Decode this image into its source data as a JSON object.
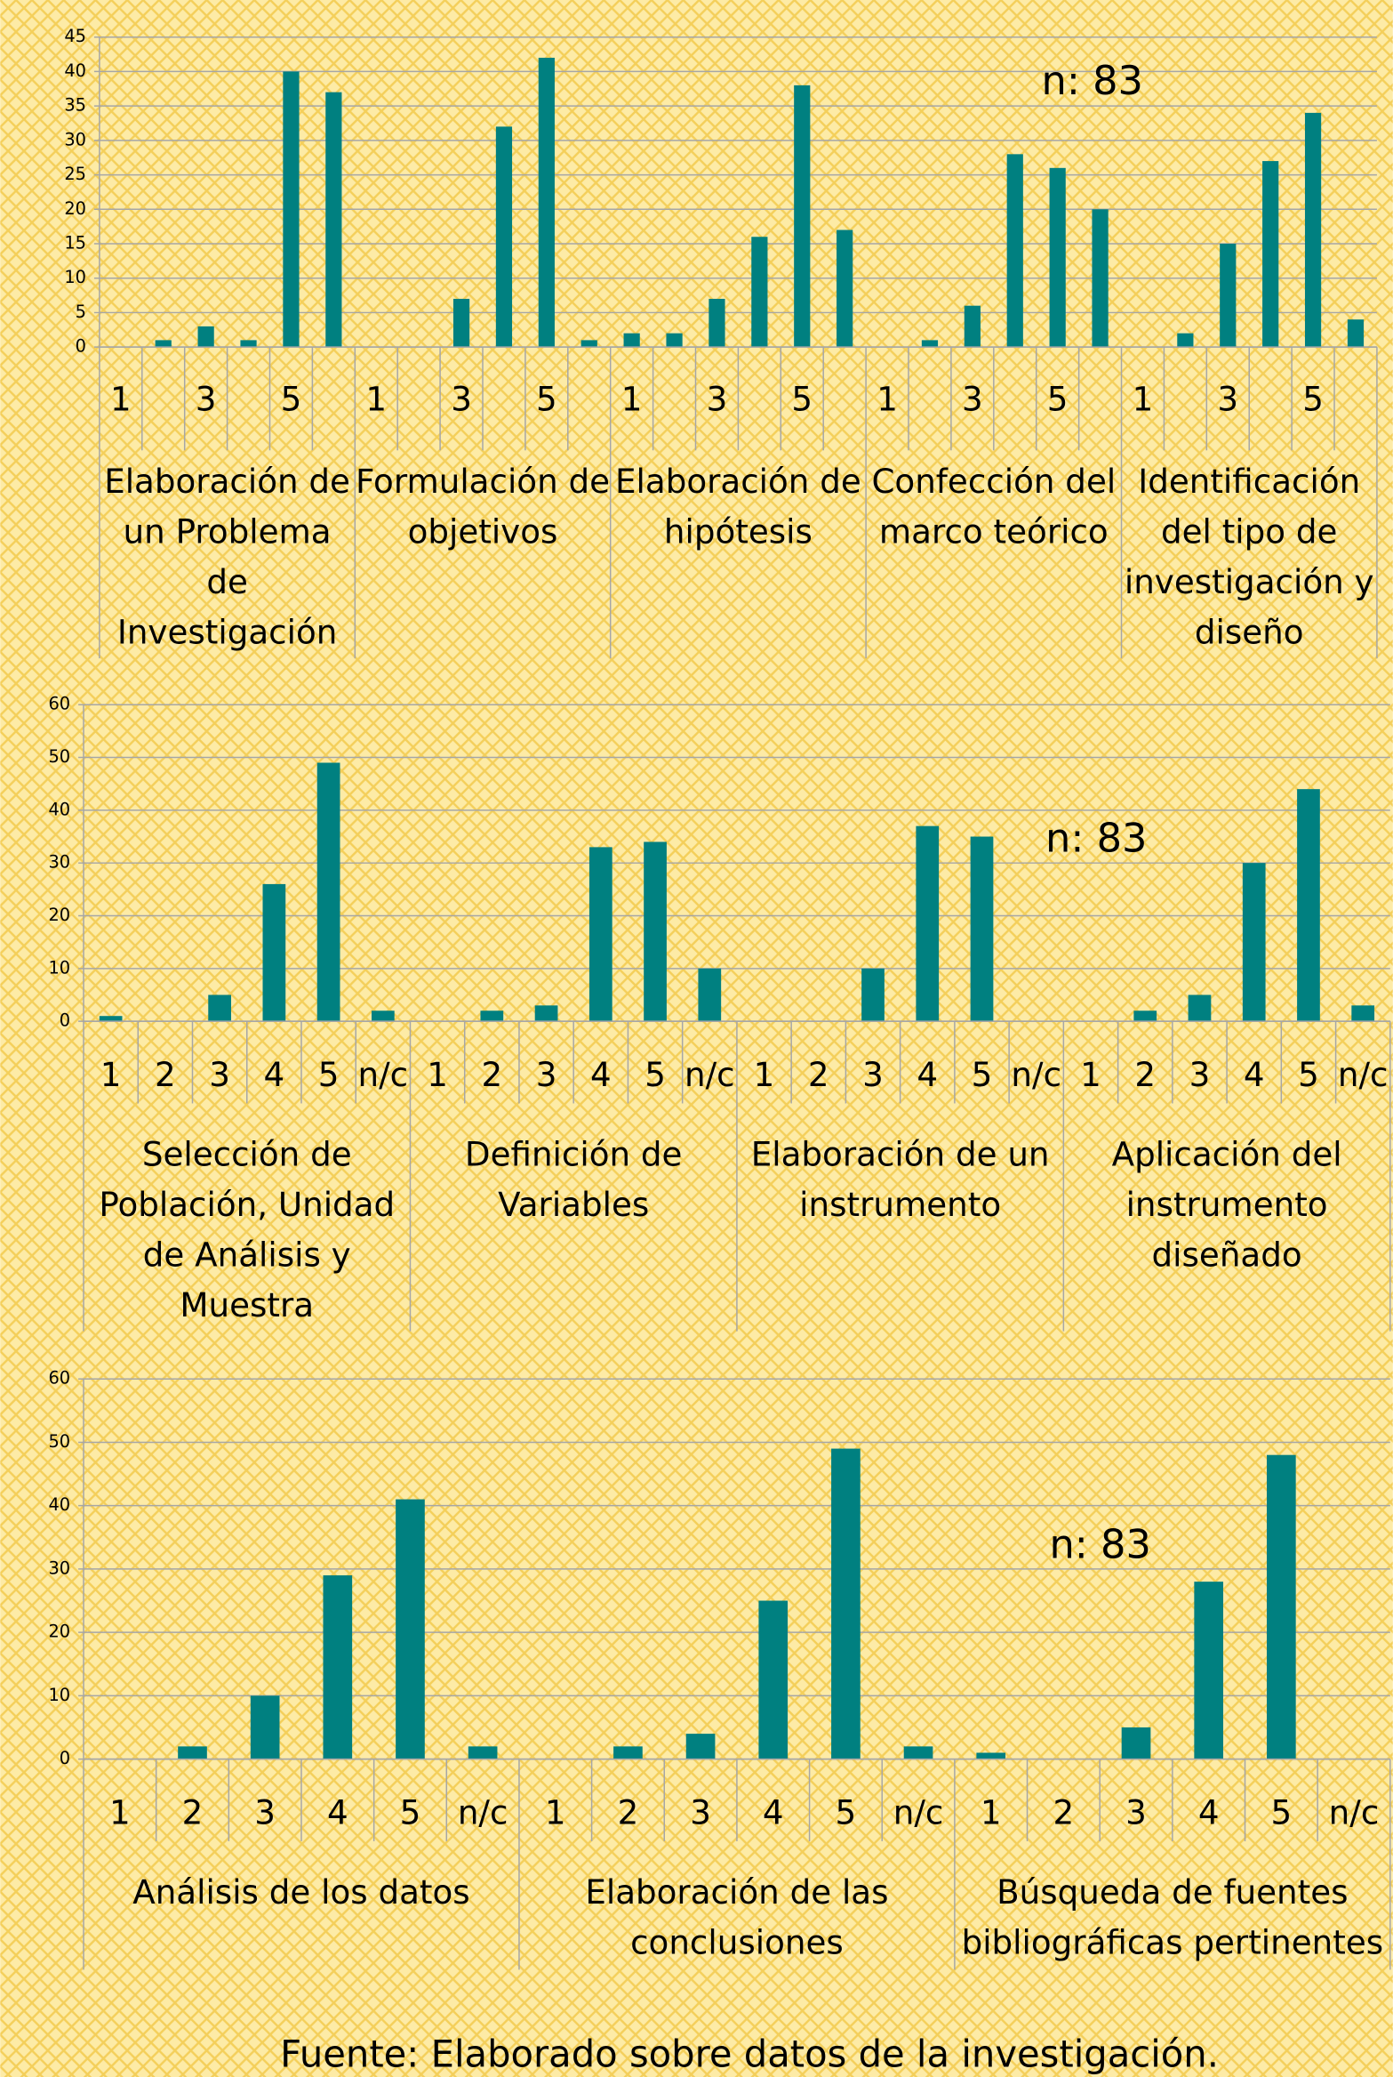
{
  "chart_data": [
    {
      "type": "bar",
      "color": "#008080",
      "ylim": [
        0,
        45
      ],
      "yticks": [
        0,
        5,
        10,
        15,
        20,
        25,
        30,
        35,
        40,
        45
      ],
      "grid": true,
      "annotation": "n: 83",
      "groups": [
        {
          "name": "Elaboración de un Problema de Investigación",
          "categories": [
            "1",
            null,
            "3",
            null,
            "5",
            null
          ],
          "values": [
            0,
            1,
            3,
            1,
            40,
            37
          ]
        },
        {
          "name": "Formulación de objetivos",
          "categories": [
            "1",
            null,
            "3",
            null,
            "5",
            null
          ],
          "values": [
            0,
            0,
            7,
            32,
            42,
            1
          ]
        },
        {
          "name": "Elaboración de hipótesis",
          "categories": [
            "1",
            null,
            "3",
            null,
            "5",
            null
          ],
          "values": [
            2,
            2,
            7,
            16,
            38,
            17
          ]
        },
        {
          "name": "Confección del marco teórico",
          "categories": [
            "1",
            null,
            "3",
            null,
            "5",
            null
          ],
          "values": [
            0,
            1,
            6,
            28,
            26,
            20
          ]
        },
        {
          "name": "Identificación del tipo de investigación y diseño",
          "categories": [
            "1",
            null,
            "3",
            null,
            "5",
            null
          ],
          "values": [
            0,
            2,
            15,
            27,
            34,
            4
          ]
        }
      ]
    },
    {
      "type": "bar",
      "color": "#008080",
      "ylim": [
        0,
        60
      ],
      "yticks": [
        0,
        10,
        20,
        30,
        40,
        50,
        60
      ],
      "grid": true,
      "annotation": "n: 83",
      "groups": [
        {
          "name": "Selección de Población, Unidad de Análisis y Muestra",
          "categories": [
            "1",
            "2",
            "3",
            "4",
            "5",
            "n/c"
          ],
          "values": [
            1,
            0,
            5,
            26,
            49,
            2
          ]
        },
        {
          "name": "Definición de Variables",
          "categories": [
            "1",
            "2",
            "3",
            "4",
            "5",
            "n/c"
          ],
          "values": [
            0,
            2,
            3,
            33,
            34,
            10
          ]
        },
        {
          "name": "Elaboración de un instrumento",
          "categories": [
            "1",
            "2",
            "3",
            "4",
            "5",
            "n/c"
          ],
          "values": [
            0,
            0,
            10,
            37,
            35,
            0
          ]
        },
        {
          "name": "Aplicación del instrumento diseñado",
          "categories": [
            "1",
            "2",
            "3",
            "4",
            "5",
            "n/c"
          ],
          "values": [
            0,
            2,
            5,
            30,
            44,
            3
          ]
        }
      ]
    },
    {
      "type": "bar",
      "color": "#008080",
      "ylim": [
        0,
        60
      ],
      "yticks": [
        0,
        10,
        20,
        30,
        40,
        50,
        60
      ],
      "grid": true,
      "annotation": "n: 83",
      "groups": [
        {
          "name": "Análisis de los datos",
          "categories": [
            "1",
            "2",
            "3",
            "4",
            "5",
            "n/c"
          ],
          "values": [
            0,
            2,
            10,
            29,
            41,
            2
          ]
        },
        {
          "name": "Elaboración de las conclusiones",
          "categories": [
            "1",
            "2",
            "3",
            "4",
            "5",
            "n/c"
          ],
          "values": [
            0,
            2,
            4,
            25,
            49,
            2
          ]
        },
        {
          "name": "Búsqueda de fuentes bibliográficas pertinentes",
          "categories": [
            "1",
            "2",
            "3",
            "4",
            "5",
            "n/c"
          ],
          "values": [
            1,
            0,
            5,
            28,
            48,
            0
          ]
        }
      ]
    }
  ],
  "footer": "Fuente: Elaborado sobre datos de la investigación."
}
